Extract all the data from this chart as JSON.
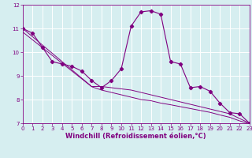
{
  "title": "",
  "xlabel": "Windchill (Refroidissement éolien,°C)",
  "ylabel": "",
  "bg_color": "#d6eef0",
  "line_color": "#800080",
  "grid_color": "#ffffff",
  "x_data": [
    0,
    1,
    2,
    3,
    4,
    5,
    6,
    7,
    8,
    9,
    10,
    11,
    12,
    13,
    14,
    15,
    16,
    17,
    18,
    19,
    20,
    21,
    22,
    23
  ],
  "y_main": [
    11.0,
    10.8,
    10.2,
    9.6,
    9.5,
    9.4,
    9.2,
    8.8,
    8.5,
    8.8,
    9.3,
    11.1,
    11.7,
    11.75,
    11.6,
    9.6,
    9.5,
    8.5,
    8.55,
    8.35,
    7.85,
    7.45,
    7.4,
    7.0
  ],
  "y_trend1": [
    11.0,
    10.65,
    10.3,
    9.95,
    9.6,
    9.25,
    8.9,
    8.55,
    8.55,
    8.5,
    8.45,
    8.4,
    8.3,
    8.2,
    8.1,
    8.0,
    7.9,
    7.8,
    7.7,
    7.6,
    7.5,
    7.4,
    7.2,
    7.0
  ],
  "y_trend2": [
    10.85,
    10.52,
    10.19,
    9.86,
    9.53,
    9.2,
    8.87,
    8.54,
    8.4,
    8.3,
    8.2,
    8.1,
    8.0,
    7.95,
    7.85,
    7.78,
    7.7,
    7.62,
    7.54,
    7.46,
    7.35,
    7.25,
    7.1,
    6.98
  ],
  "ylim": [
    7,
    12
  ],
  "xlim": [
    0,
    23
  ],
  "yticks": [
    7,
    8,
    9,
    10,
    11,
    12
  ],
  "xticks": [
    0,
    1,
    2,
    3,
    4,
    5,
    6,
    7,
    8,
    9,
    10,
    11,
    12,
    13,
    14,
    15,
    16,
    17,
    18,
    19,
    20,
    21,
    22,
    23
  ],
  "marker": "D",
  "marker_size": 2.2,
  "line_width": 0.8,
  "tick_fontsize": 5.0,
  "xlabel_fontsize": 6.0
}
